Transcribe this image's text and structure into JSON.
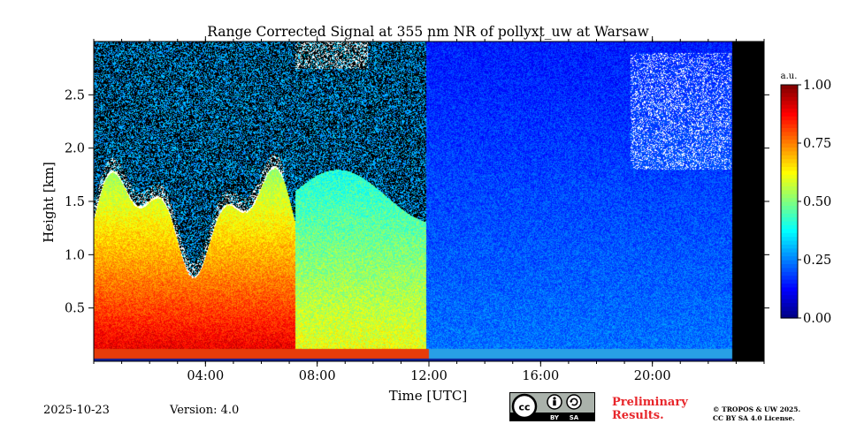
{
  "chart_data": {
    "type": "heatmap",
    "title": "Range Corrected Signal at 355 nm NR of pollyxt_uw at Warsaw",
    "xlabel": "Time [UTC]",
    "ylabel": "Height [km]",
    "xlim_hours": [
      0,
      24
    ],
    "ylim_km": [
      0,
      3.0
    ],
    "x_ticks": [
      {
        "hour": 4,
        "label": "04:00"
      },
      {
        "hour": 8,
        "label": "08:00"
      },
      {
        "hour": 12,
        "label": "12:00"
      },
      {
        "hour": 16,
        "label": "16:00"
      },
      {
        "hour": 20,
        "label": "20:00"
      }
    ],
    "y_ticks": [
      {
        "value": 0.5,
        "label": "0.5"
      },
      {
        "value": 1.0,
        "label": "1.0"
      },
      {
        "value": 1.5,
        "label": "1.5"
      },
      {
        "value": 2.0,
        "label": "2.0"
      },
      {
        "value": 2.5,
        "label": "2.5"
      }
    ],
    "colorbar": {
      "unit": "a.u.",
      "range": [
        0,
        1
      ],
      "ticks": [
        {
          "value": 0.0,
          "label": "0.00"
        },
        {
          "value": 0.25,
          "label": "0.25"
        },
        {
          "value": 0.5,
          "label": "0.50"
        },
        {
          "value": 0.75,
          "label": "0.75"
        },
        {
          "value": 1.0,
          "label": "1.00"
        }
      ],
      "colormap": "jet"
    },
    "no_data_color": "#000000",
    "cloud_color": "#ffffff",
    "background_color": "#000000"
  },
  "footer": {
    "date": "2025-10-23",
    "version": "Version: 4.0",
    "license_badge": [
      "cc",
      "BY",
      "SA"
    ],
    "preliminary_line1": "Preliminary",
    "preliminary_line2": "Results.",
    "copyright_line1": "© TROPOS & UW 2025.",
    "copyright_line2": "CC BY SA 4.0 License."
  },
  "colors": {
    "preliminary": "#e8262b"
  }
}
